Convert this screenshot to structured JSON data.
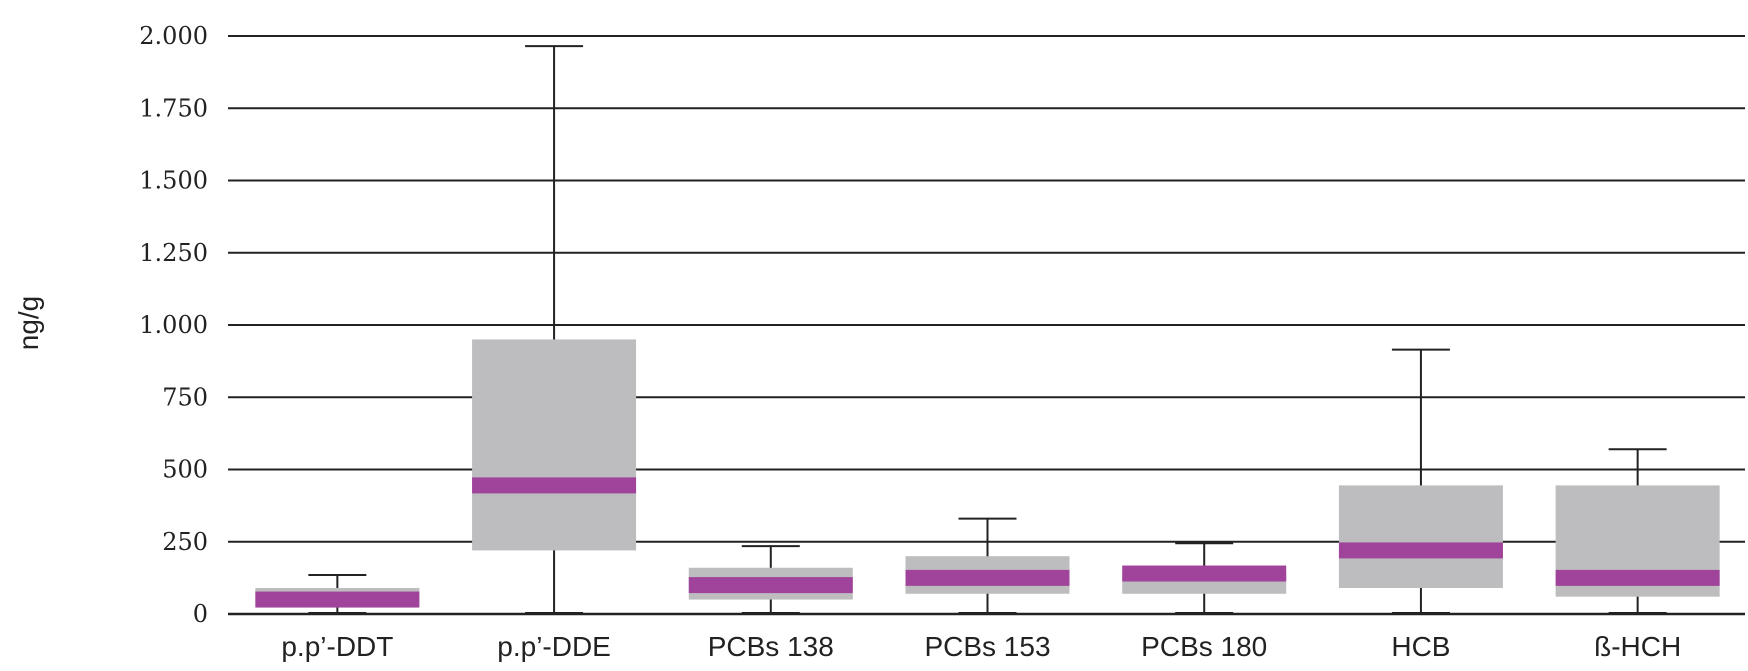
{
  "chart_data": {
    "type": "boxplot",
    "ylabel": "ng/g",
    "ylim": [
      0,
      2000
    ],
    "yticks": [
      0,
      250,
      500,
      750,
      1000,
      1250,
      1500,
      1750,
      2000
    ],
    "ytick_labels": [
      "0",
      "250",
      "500",
      "750",
      "1.000",
      "1.250",
      "1.500",
      "1.750",
      "2.000"
    ],
    "grid": true,
    "categories": [
      "p.p’-DDT",
      "p.p’-DDE",
      "PCBs 138",
      "PCBs 153",
      "PCBs 180",
      "HCB",
      "ß-HCH"
    ],
    "boxes": [
      {
        "category": "p.p’-DDT",
        "min": 5,
        "q1": 25,
        "median": 50,
        "q3": 90,
        "max": 135
      },
      {
        "category": "p.p’-DDE",
        "min": 5,
        "q1": 220,
        "median": 445,
        "q3": 950,
        "max": 1965
      },
      {
        "category": "PCBs 138",
        "min": 5,
        "q1": 50,
        "median": 100,
        "q3": 160,
        "max": 235
      },
      {
        "category": "PCBs 153",
        "min": 5,
        "q1": 70,
        "median": 125,
        "q3": 200,
        "max": 330
      },
      {
        "category": "PCBs 180",
        "min": 5,
        "q1": 70,
        "median": 140,
        "q3": 145,
        "max": 245
      },
      {
        "category": "HCB",
        "min": 5,
        "q1": 90,
        "median": 220,
        "q3": 445,
        "max": 915
      },
      {
        "category": "ß-HCH",
        "min": 5,
        "q1": 60,
        "median": 125,
        "q3": 445,
        "max": 570
      }
    ],
    "colors": {
      "box": "#bdbdbf",
      "median": "#a0449b",
      "line": "#222222"
    }
  }
}
